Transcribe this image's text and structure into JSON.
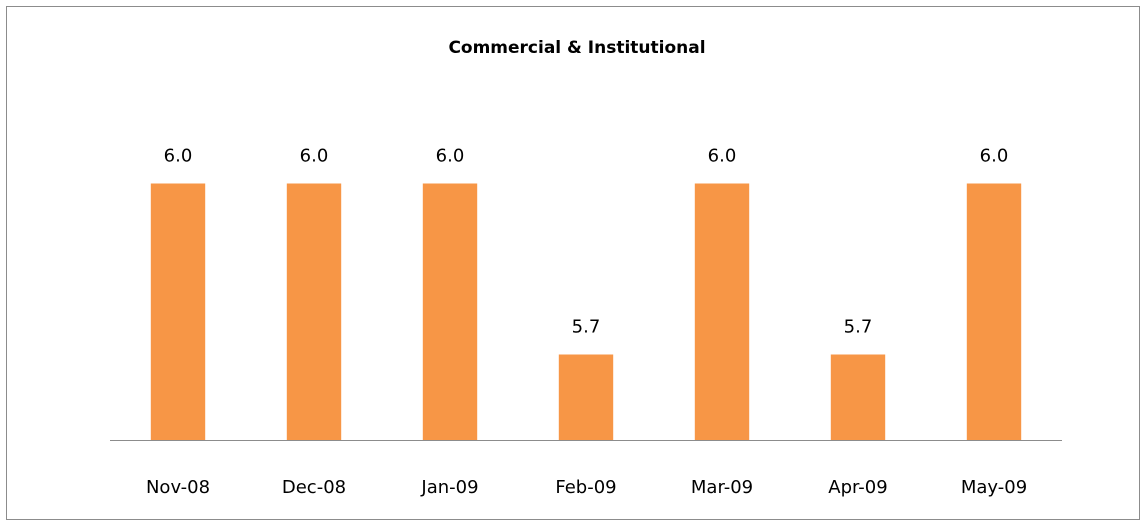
{
  "chart_data": {
    "type": "bar",
    "title": "Commercial & Institutional",
    "categories": [
      "Nov-08",
      "Dec-08",
      "Jan-09",
      "Feb-09",
      "Mar-09",
      "Apr-09",
      "May-09"
    ],
    "values": [
      6.0,
      6.0,
      6.0,
      5.7,
      6.0,
      5.7,
      6.0
    ],
    "value_labels": [
      "6.0",
      "6.0",
      "6.0",
      "5.7",
      "6.0",
      "5.7",
      "6.0"
    ],
    "color": "#f79646",
    "ylim": [
      5.55,
      6.1
    ],
    "grid": false
  }
}
